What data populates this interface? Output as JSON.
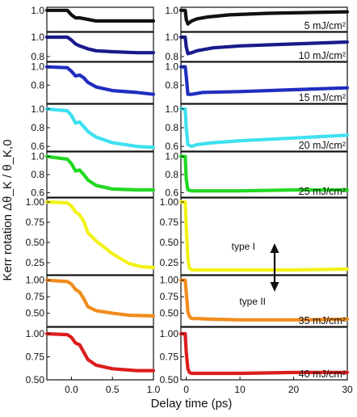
{
  "chart_data": {
    "type": "line",
    "ylabel": "Kerr rotation Δθ_K / θ_K,0",
    "xlabel": "Delay time (ps)",
    "left_panels_xlim": [
      -0.3,
      1.0
    ],
    "right_panels_xlim": [
      -1,
      30
    ],
    "left_x_ticks": [
      "0.0",
      "0.5",
      "1.0"
    ],
    "right_x_ticks": [
      "0",
      "10",
      "20",
      "30"
    ],
    "annotations": {
      "type_i": "type I",
      "type_ii": "type II"
    },
    "panels": [
      {
        "fluence_label": "5 mJ/cm²",
        "color": "#111111",
        "ylim": [
          0.93,
          1.01
        ],
        "y_ticks": [
          {
            "v": 1.0,
            "label": "1.0"
          }
        ],
        "left": {
          "x": [
            -0.3,
            -0.05,
            0.0,
            0.05,
            0.1,
            0.2,
            0.3,
            0.5,
            0.8,
            1.0
          ],
          "y": [
            1.0,
            1.0,
            0.985,
            0.975,
            0.975,
            0.97,
            0.965,
            0.965,
            0.965,
            0.965
          ]
        },
        "right": {
          "x": [
            -1,
            -0.2,
            0.0,
            0.3,
            1.0,
            2.0,
            4.0,
            8.0,
            15.0,
            30.0
          ],
          "y": [
            1.0,
            1.0,
            0.97,
            0.955,
            0.965,
            0.972,
            0.978,
            0.985,
            0.99,
            0.995
          ]
        }
      },
      {
        "fluence_label": "10 mJ/cm²",
        "color": "#1a1a8c",
        "ylim": [
          0.75,
          1.05
        ],
        "y_ticks": [
          {
            "v": 1.0,
            "label": "1.0"
          },
          {
            "v": 0.8,
            "label": "0.8"
          }
        ],
        "left": {
          "x": [
            -0.3,
            -0.05,
            0.0,
            0.05,
            0.1,
            0.2,
            0.3,
            0.5,
            0.8,
            1.0
          ],
          "y": [
            1.0,
            1.0,
            0.97,
            0.93,
            0.91,
            0.88,
            0.86,
            0.85,
            0.84,
            0.84
          ]
        },
        "right": {
          "x": [
            -1,
            -0.2,
            0.0,
            0.3,
            1.0,
            2.0,
            5.0,
            10.0,
            20.0,
            30.0
          ],
          "y": [
            1.0,
            1.0,
            0.9,
            0.83,
            0.84,
            0.86,
            0.89,
            0.91,
            0.93,
            0.95
          ]
        }
      },
      {
        "fluence_label": "15 mJ/cm²",
        "color": "#1f2ebf",
        "ylim": [
          0.6,
          1.05
        ],
        "y_ticks": [
          {
            "v": 1.0,
            "label": "1.0"
          },
          {
            "v": 0.8,
            "label": "0.8"
          }
        ],
        "left": {
          "x": [
            -0.3,
            -0.05,
            0.0,
            0.05,
            0.1,
            0.15,
            0.2,
            0.3,
            0.5,
            0.8,
            1.0
          ],
          "y": [
            1.0,
            0.99,
            0.95,
            0.9,
            0.91,
            0.88,
            0.83,
            0.78,
            0.74,
            0.72,
            0.7
          ]
        },
        "right": {
          "x": [
            -1,
            -0.2,
            0.0,
            0.3,
            1.0,
            3.0,
            10.0,
            20.0,
            30.0
          ],
          "y": [
            1.0,
            1.0,
            0.9,
            0.7,
            0.7,
            0.72,
            0.73,
            0.75,
            0.77
          ]
        }
      },
      {
        "fluence_label": "20 mJ/cm²",
        "color": "#3ee0f0",
        "ylim": [
          0.55,
          1.05
        ],
        "y_ticks": [
          {
            "v": 1.0,
            "label": "1.0"
          },
          {
            "v": 0.8,
            "label": "0.8"
          },
          {
            "v": 0.6,
            "label": "0.6"
          }
        ],
        "left": {
          "x": [
            -0.3,
            -0.05,
            0.0,
            0.05,
            0.1,
            0.15,
            0.2,
            0.3,
            0.5,
            0.8,
            1.0
          ],
          "y": [
            1.0,
            0.98,
            0.93,
            0.85,
            0.86,
            0.81,
            0.76,
            0.7,
            0.64,
            0.6,
            0.59
          ]
        },
        "right": {
          "x": [
            -1,
            -0.2,
            0.0,
            0.3,
            1.0,
            2.0,
            5.0,
            10.0,
            20.0,
            30.0
          ],
          "y": [
            1.0,
            1.0,
            0.8,
            0.62,
            0.6,
            0.62,
            0.64,
            0.66,
            0.69,
            0.72
          ]
        }
      },
      {
        "fluence_label": "25 mJ/cm²",
        "color": "#22d822",
        "ylim": [
          0.55,
          1.05
        ],
        "y_ticks": [
          {
            "v": 1.0,
            "label": "1.0"
          },
          {
            "v": 0.8,
            "label": "0.8"
          },
          {
            "v": 0.6,
            "label": "0.6"
          }
        ],
        "left": {
          "x": [
            -0.3,
            -0.05,
            0.0,
            0.05,
            0.1,
            0.15,
            0.2,
            0.3,
            0.5,
            0.8,
            1.0
          ],
          "y": [
            1.0,
            0.97,
            0.92,
            0.84,
            0.85,
            0.8,
            0.74,
            0.68,
            0.64,
            0.63,
            0.63
          ]
        },
        "right": {
          "x": [
            -1,
            -0.2,
            0.0,
            0.3,
            1.0,
            2.0,
            5.0,
            10.0,
            20.0,
            30.0
          ],
          "y": [
            1.0,
            1.0,
            0.75,
            0.63,
            0.62,
            0.62,
            0.62,
            0.62,
            0.63,
            0.63
          ]
        }
      },
      {
        "fluence_label": "",
        "color": "#f2f21a",
        "ylim": [
          0.1,
          1.05
        ],
        "y_ticks": [
          {
            "v": 1.0,
            "label": "1.00"
          },
          {
            "v": 0.75,
            "label": "0.75"
          },
          {
            "v": 0.5,
            "label": "0.50"
          },
          {
            "v": 0.25,
            "label": "0.25"
          }
        ],
        "left": {
          "x": [
            -0.3,
            -0.05,
            0.0,
            0.05,
            0.1,
            0.15,
            0.2,
            0.3,
            0.4,
            0.5,
            0.7,
            0.85,
            1.0
          ],
          "y": [
            1.0,
            0.99,
            0.95,
            0.88,
            0.84,
            0.76,
            0.62,
            0.52,
            0.44,
            0.36,
            0.24,
            0.2,
            0.19
          ]
        },
        "right": {
          "x": [
            -1,
            -0.2,
            0.0,
            0.3,
            0.6,
            1.0,
            2.0,
            5.0,
            10.0,
            20.0,
            30.0
          ],
          "y": [
            1.0,
            1.0,
            0.7,
            0.3,
            0.18,
            0.16,
            0.16,
            0.16,
            0.16,
            0.16,
            0.17
          ]
        }
      },
      {
        "fluence_label": "35 mJ/cm²",
        "color": "#f08c1c",
        "ylim": [
          0.3,
          1.07
        ],
        "y_ticks": [
          {
            "v": 1.0,
            "label": "1.00"
          },
          {
            "v": 0.75,
            "label": "0.75"
          },
          {
            "v": 0.5,
            "label": "0.50"
          }
        ],
        "left": {
          "x": [
            -0.3,
            -0.05,
            0.0,
            0.05,
            0.1,
            0.15,
            0.2,
            0.3,
            0.5,
            0.7,
            1.0
          ],
          "y": [
            1.0,
            0.98,
            0.94,
            0.86,
            0.82,
            0.72,
            0.6,
            0.54,
            0.5,
            0.47,
            0.46
          ]
        },
        "right": {
          "x": [
            -1,
            -0.2,
            0.0,
            0.3,
            0.6,
            1.0,
            2.0,
            5.0,
            10.0,
            20.0,
            30.0
          ],
          "y": [
            1.0,
            1.0,
            0.82,
            0.52,
            0.45,
            0.42,
            0.42,
            0.41,
            0.4,
            0.4,
            0.41
          ]
        }
      },
      {
        "fluence_label": "40 mJ/cm²",
        "color": "#dc1e1e",
        "ylim": [
          0.5,
          1.07
        ],
        "y_ticks": [
          {
            "v": 1.0,
            "label": "1.00"
          },
          {
            "v": 0.75,
            "label": "0.75"
          },
          {
            "v": 0.5,
            "label": "0.50"
          }
        ],
        "left": {
          "x": [
            -0.3,
            -0.05,
            0.0,
            0.05,
            0.1,
            0.15,
            0.2,
            0.3,
            0.5,
            0.8,
            1.0
          ],
          "y": [
            1.0,
            0.99,
            0.96,
            0.9,
            0.88,
            0.8,
            0.72,
            0.66,
            0.62,
            0.6,
            0.6
          ]
        },
        "right": {
          "x": [
            -1,
            -0.2,
            0.0,
            0.3,
            0.6,
            1.0,
            2.0,
            5.0,
            10.0,
            20.0,
            30.0
          ],
          "y": [
            1.0,
            1.0,
            0.8,
            0.62,
            0.58,
            0.57,
            0.57,
            0.57,
            0.57,
            0.58,
            0.58
          ]
        }
      }
    ]
  }
}
